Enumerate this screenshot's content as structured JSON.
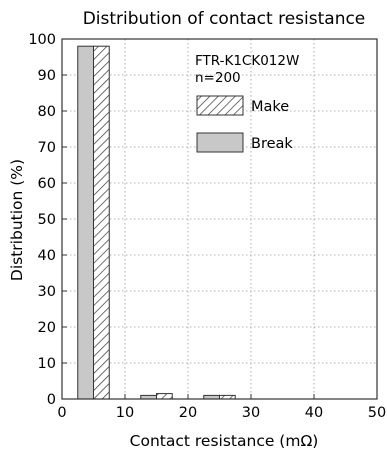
{
  "chart_data": {
    "type": "bar",
    "title": "Distribution of contact resistance",
    "xlabel": "Contact resistance (mΩ)",
    "ylabel": "Distribution (%)",
    "xlim": [
      0,
      50
    ],
    "ylim": [
      0,
      100
    ],
    "xticks": [
      0,
      10,
      20,
      30,
      40,
      50
    ],
    "yticks": [
      0,
      10,
      20,
      30,
      40,
      50,
      60,
      70,
      80,
      90,
      100
    ],
    "grid": "dotted",
    "bin_edges": [
      [
        2.5,
        7.5
      ],
      [
        12.5,
        17.5
      ],
      [
        22.5,
        27.5
      ]
    ],
    "annotation": [
      "FTR-K1CK012W",
      "n=200"
    ],
    "legend_position": "top-right",
    "series": [
      {
        "name": "Make",
        "pattern": "hatched",
        "values": [
          98,
          1.5,
          1
        ]
      },
      {
        "name": "Break",
        "pattern": "solid",
        "color": "#c8c8c8",
        "values": [
          98,
          1,
          1
        ]
      }
    ]
  }
}
